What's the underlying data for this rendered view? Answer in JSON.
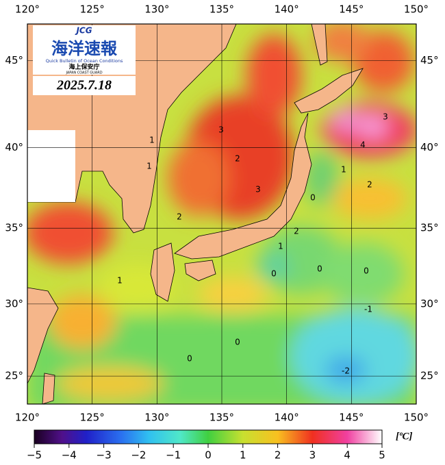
{
  "map": {
    "xlim": [
      120,
      150
    ],
    "ylim": [
      23,
      47
    ],
    "xticks": [
      {
        "value": 120,
        "label": "120°"
      },
      {
        "value": 125,
        "label": "125°"
      },
      {
        "value": 130,
        "label": "130°"
      },
      {
        "value": 135,
        "label": "135°"
      },
      {
        "value": 140,
        "label": "140°"
      },
      {
        "value": 145,
        "label": "145°"
      },
      {
        "value": 150,
        "label": "150°"
      }
    ],
    "yticks": [
      {
        "value": 25,
        "label": "25°"
      },
      {
        "value": 30,
        "label": "30°"
      },
      {
        "value": 35,
        "label": "35°"
      },
      {
        "value": 40,
        "label": "40°"
      },
      {
        "value": 45,
        "label": "45°"
      }
    ],
    "logo": {
      "acronym": "JCG",
      "title": "海洋速報",
      "subtitle": "Quick Bulletin of Ocean Conditions",
      "agency": "海上保安庁",
      "agency_en": "JAPAN COAST GUARD"
    },
    "date": "2025.7.18",
    "contour_labels": [
      3,
      2,
      3,
      2,
      1,
      1,
      1,
      0,
      1,
      2,
      2,
      1,
      0,
      0,
      0,
      -1,
      0,
      0,
      -2,
      3,
      4
    ],
    "colorbar": {
      "lim": [
        -5,
        5
      ],
      "unit": "[ºC]",
      "ticks": [
        {
          "value": -5,
          "label": "−5"
        },
        {
          "value": -4,
          "label": "−4"
        },
        {
          "value": -3,
          "label": "−3"
        },
        {
          "value": -2,
          "label": "−2"
        },
        {
          "value": -1,
          "label": "−1"
        },
        0,
        1,
        2,
        3,
        4,
        5
      ]
    }
  }
}
